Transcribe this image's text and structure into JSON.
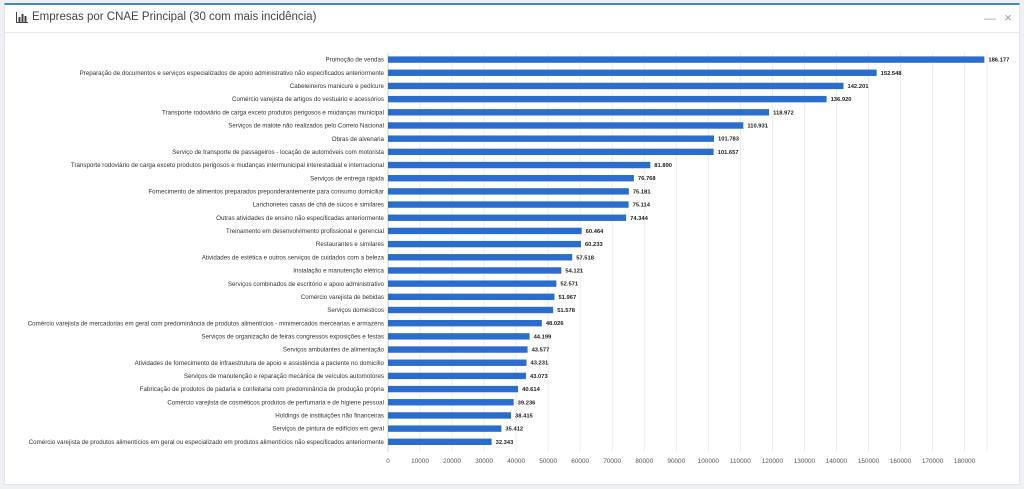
{
  "panel": {
    "title": "Empresas por CNAE Principal (30 com mais incidência)",
    "minimize_label": "—",
    "close_label": "×"
  },
  "colors": {
    "bar": "#2a6dcd",
    "accent": "#3c8dbc",
    "grid": "#e4e7eb"
  },
  "icons": {
    "chart": "bar-chart-icon",
    "minimize": "minimize-icon",
    "close": "close-icon"
  },
  "chart_data": {
    "type": "bar",
    "orientation": "horizontal",
    "title": "",
    "xlabel": "",
    "ylabel": "",
    "xlim": [
      0,
      187000
    ],
    "grid": true,
    "categories": [
      "Promoção de vendas",
      "Preparação de documentos e serviços especializados de apoio administrativo não especificados anteriormente",
      "Cabeleireiros manicure e pedicure",
      "Comércio varejista de artigos do vestuário e acessórios",
      "Transporte rodoviário de carga exceto produtos perigosos e mudanças municipal",
      "Serviços de malote não realizados pelo Correio Nacional",
      "Obras de alvenaria",
      "Serviço de transporte de passageiros - locação de automóveis com motorista",
      "Transporte rodoviário de carga exceto produtos perigosos e mudanças intermunicipal interestadual e internacional",
      "Serviços de entrega rápida",
      "Fornecimento de alimentos preparados preponderantemente para consumo domiciliar",
      "Lanchonetes casas de chá de sucos e similares",
      "Outras atividades de ensino não especificadas anteriormente",
      "Treinamento em desenvolvimento profissional e gerencial",
      "Restaurantes e similares",
      "Atividades de estética e outros serviços de cuidados com a beleza",
      "Instalação e manutenção elétrica",
      "Serviços combinados de escritório e apoio administrativo",
      "Comércio varejista de bebidas",
      "Serviços domésticos",
      "Comércio varejista de mercadorias em geral com predominância de produtos alimentícios - minimercados mercearias e armazéns",
      "Serviços de organização de feiras congressos exposições e festas",
      "Serviços ambulantes de alimentação",
      "Atividades de fornecimento de infraestrutura de apoio e assistência a paciente no domicílio",
      "Serviços de manutenção e reparação mecânica de veículos automotores",
      "Fabricação de produtos de padaria e confeitaria com predominância de produção própria",
      "Comércio varejista de cosméticos produtos de perfumaria e de higiene pessoal",
      "Holdings de instituições não financeiras",
      "Serviços de pintura de edifícios em geral",
      "Comércio varejista de produtos alimentícios em geral ou especializado em produtos alimentícios não especificados anteriormente"
    ],
    "values": [
      186177,
      152548,
      142201,
      136920,
      118972,
      110931,
      101783,
      101657,
      81890,
      76768,
      75181,
      75114,
      74344,
      60464,
      60233,
      57518,
      54121,
      52571,
      51967,
      51578,
      48026,
      44199,
      43577,
      43231,
      43073,
      40614,
      39236,
      38415,
      35412,
      32343
    ],
    "value_labels": [
      "186.177",
      "152.548",
      "142.201",
      "136.920",
      "118.972",
      "110.931",
      "101.783",
      "101.657",
      "81.890",
      "76.768",
      "75.181",
      "75.114",
      "74.344",
      "60.464",
      "60.233",
      "57.518",
      "54.121",
      "52.571",
      "51.967",
      "51.578",
      "48.026",
      "44.199",
      "43.577",
      "43.231",
      "43.073",
      "40.614",
      "39.236",
      "38.415",
      "35.412",
      "32.343"
    ],
    "x_ticks": [
      0,
      10000,
      20000,
      30000,
      40000,
      50000,
      60000,
      70000,
      80000,
      90000,
      100000,
      110000,
      120000,
      130000,
      140000,
      150000,
      160000,
      170000,
      180000
    ]
  }
}
